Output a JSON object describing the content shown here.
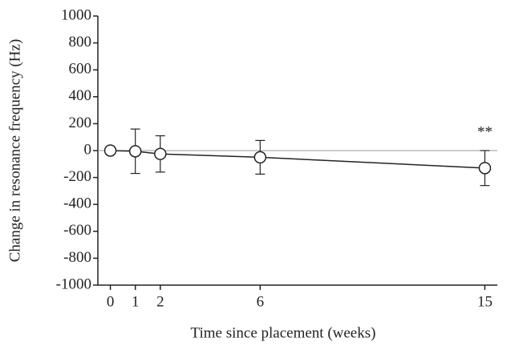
{
  "chart_data": {
    "type": "line",
    "xlabel": "Time since placement (weeks)",
    "ylabel": "Change in resonance frequency (Hz)",
    "x": [
      0,
      1,
      2,
      6,
      15
    ],
    "series": [
      {
        "color": "#222222",
        "values": [
          0,
          -5,
          -25,
          -50,
          -130
        ],
        "errors": [
          null,
          165,
          135,
          125,
          130
        ]
      }
    ],
    "reference_line": 0,
    "annotations": [
      {
        "text": "**",
        "x": 15,
        "y": 0
      }
    ],
    "xlim": [
      -0.5,
      15.5
    ],
    "xticks": [
      0,
      1,
      2,
      6,
      15
    ],
    "ylim": [
      -1000,
      1000
    ],
    "yticks": [
      -1000,
      -800,
      -600,
      -400,
      -200,
      0,
      200,
      400,
      600,
      800,
      1000
    ],
    "grid": false
  }
}
